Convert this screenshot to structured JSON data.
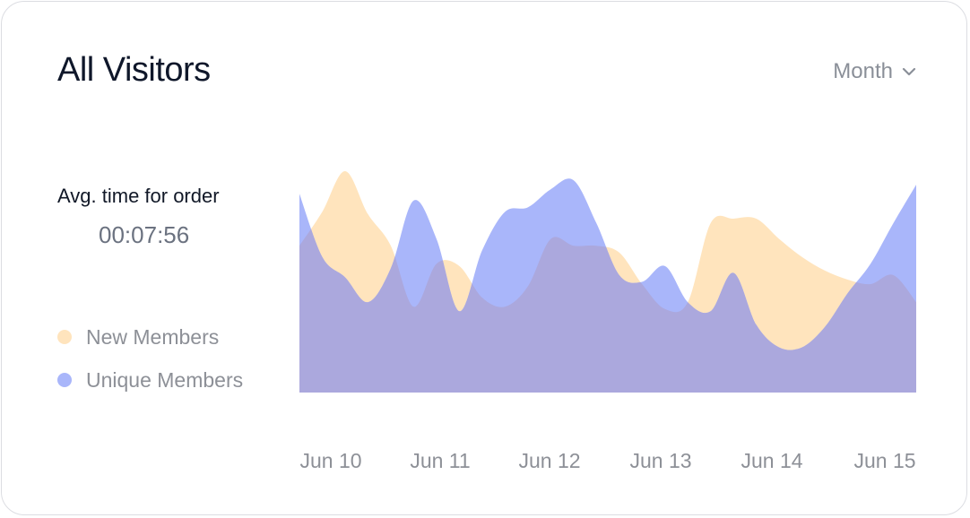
{
  "header": {
    "title": "All Visitors",
    "period_label": "Month"
  },
  "stats": {
    "avg_label": "Avg. time for order",
    "avg_value": "00:07:56"
  },
  "colors": {
    "new_members": "#ffe4bd",
    "unique_members": "#a9b6fa",
    "overlap": "#aba8dd"
  },
  "chart_data": {
    "type": "area",
    "title": "All Visitors",
    "categories": [
      "Jun 10",
      "Jun 11",
      "Jun 12",
      "Jun 13",
      "Jun 14",
      "Jun 15"
    ],
    "x": [
      0,
      0.2,
      0.4,
      0.6,
      0.8,
      1.0,
      1.2,
      1.4,
      1.6,
      1.8,
      2.0,
      2.2,
      2.4,
      2.6,
      2.8,
      3.0,
      3.2,
      3.4,
      3.6,
      3.8,
      4.0,
      4.2,
      4.4,
      4.6,
      4.8,
      5.0,
      5.2,
      5.4
    ],
    "ylim": [
      0,
      100
    ],
    "legend_position": "left",
    "grid": false,
    "series": [
      {
        "name": "New Members",
        "values": [
          65,
          80,
          98,
          79,
          65,
          38,
          57,
          56,
          42,
          38,
          47,
          68,
          65,
          65,
          62,
          48,
          37,
          40,
          75,
          77,
          77,
          68,
          60,
          54,
          50,
          48,
          52,
          40
        ]
      },
      {
        "name": "Unique Members",
        "values": [
          88,
          60,
          51,
          40,
          55,
          85,
          68,
          36,
          63,
          80,
          82,
          90,
          94,
          75,
          52,
          49,
          56,
          40,
          36,
          53,
          30,
          20,
          20,
          29,
          44,
          57,
          75,
          92
        ]
      }
    ]
  },
  "legend": {
    "items": [
      {
        "label": "New Members",
        "color": "#ffe4bd"
      },
      {
        "label": "Unique Members",
        "color": "#a9b6fa"
      }
    ]
  }
}
